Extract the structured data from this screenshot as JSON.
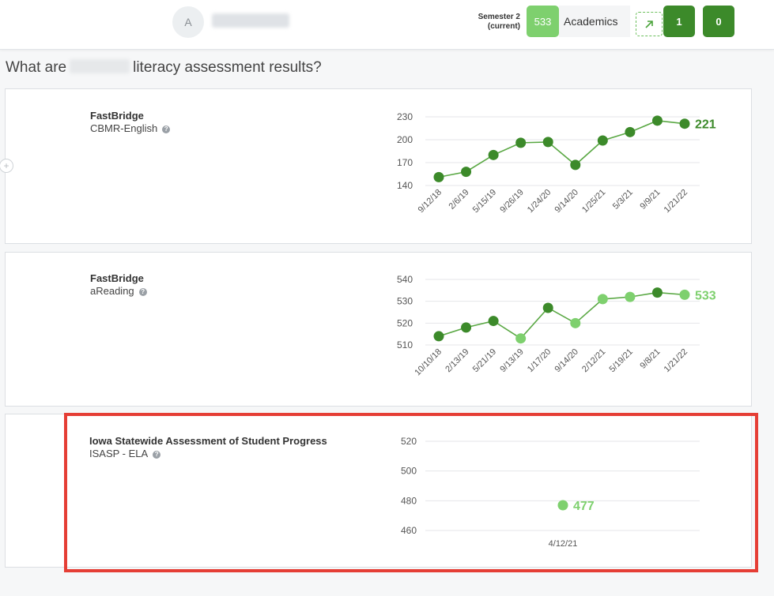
{
  "header": {
    "avatar_initial": "A",
    "semester_line1": "Semester 2",
    "semester_line2": "(current)",
    "score": "533",
    "academics_label": "Academics",
    "trend_icon": "arrow-up-right-icon",
    "count_a": "1",
    "count_b": "0"
  },
  "question": {
    "prefix": "What are",
    "suffix": "literacy assessment results?"
  },
  "colors": {
    "dark_green": "#3c8a2a",
    "light_green": "#7ed06e",
    "highlight_red": "#e53e35"
  },
  "cards": [
    {
      "title": "FastBridge",
      "subtitle": "CBMR-English",
      "latest_value": "221",
      "latest_color": "dark"
    },
    {
      "title": "FastBridge",
      "subtitle": "aReading",
      "latest_value": "533",
      "latest_color": "light"
    },
    {
      "title": "Iowa Statewide Assessment of Student Progress",
      "subtitle": "ISASP - ELA",
      "latest_value": "477",
      "latest_color": "light"
    }
  ],
  "chart_data": [
    {
      "type": "line",
      "x": [
        "9/12/18",
        "2/6/19",
        "5/15/19",
        "9/26/19",
        "1/24/20",
        "9/14/20",
        "1/25/21",
        "5/3/21",
        "9/9/21",
        "1/21/22"
      ],
      "series": [
        {
          "values": [
            151,
            158,
            180,
            196,
            197,
            167,
            199,
            210,
            225,
            221
          ]
        }
      ],
      "yticks": [
        140,
        170,
        200,
        230
      ],
      "ylim": [
        140,
        230
      ],
      "point_colors": [
        "dark",
        "dark",
        "dark",
        "dark",
        "dark",
        "dark",
        "dark",
        "dark",
        "dark",
        "dark"
      ],
      "grid": true
    },
    {
      "type": "line",
      "x": [
        "10/10/18",
        "2/13/19",
        "5/21/19",
        "9/13/19",
        "1/17/20",
        "9/14/20",
        "2/12/21",
        "5/19/21",
        "9/8/21",
        "1/21/22"
      ],
      "series": [
        {
          "values": [
            514,
            518,
            521,
            513,
            527,
            520,
            531,
            532,
            534,
            533
          ]
        }
      ],
      "yticks": [
        510,
        520,
        530,
        540
      ],
      "ylim": [
        510,
        540
      ],
      "point_colors": [
        "dark",
        "dark",
        "dark",
        "light",
        "dark",
        "light",
        "light",
        "light",
        "dark",
        "light"
      ],
      "grid": true
    },
    {
      "type": "scatter",
      "x": [
        "4/12/21"
      ],
      "series": [
        {
          "values": [
            477
          ]
        }
      ],
      "yticks": [
        460,
        480,
        500,
        520
      ],
      "ylim": [
        460,
        520
      ],
      "point_colors": [
        "light"
      ],
      "grid": true
    }
  ]
}
